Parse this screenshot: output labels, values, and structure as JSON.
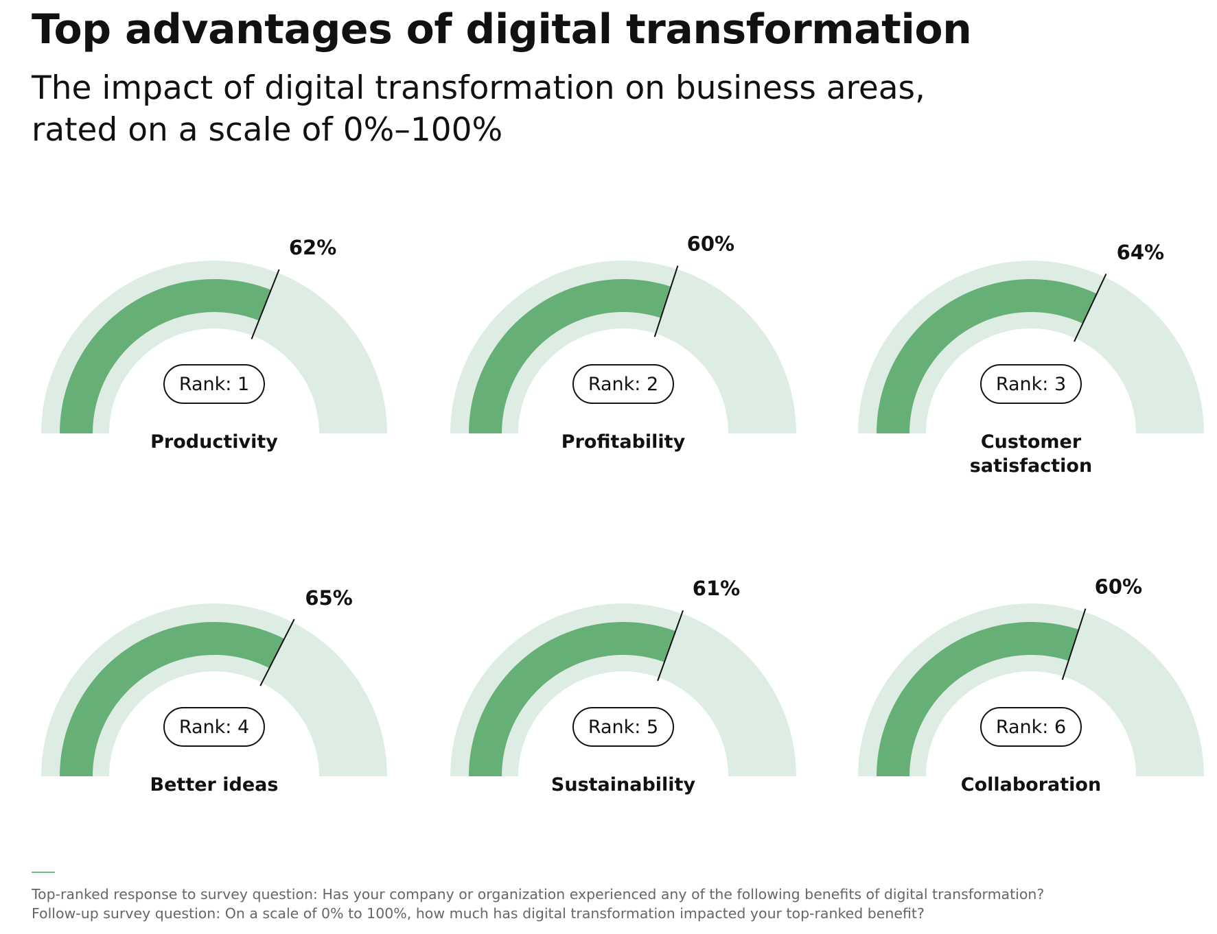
{
  "title": "Top advantages of digital transformation",
  "subtitle": {
    "line1": "The impact of digital transformation on business areas,",
    "line2": "rated on a scale of 0%–100%"
  },
  "colors": {
    "track": "#deede3",
    "fill": "#66b077",
    "needle": "#111111",
    "text": "#111111",
    "footnote": "#666666"
  },
  "chart_data": {
    "type": "gauge",
    "title": "Top advantages of digital transformation",
    "subtitle": "The impact of digital transformation on business areas, rated on a scale of 0%–100%",
    "scale": [
      0,
      100
    ],
    "unit": "%",
    "gauges": [
      {
        "category": "Productivity",
        "category_lines": [
          "Productivity"
        ],
        "rank": 1,
        "rank_label": "Rank: 1",
        "value": 62,
        "value_label": "62%"
      },
      {
        "category": "Profitability",
        "category_lines": [
          "Profitability"
        ],
        "rank": 2,
        "rank_label": "Rank: 2",
        "value": 60,
        "value_label": "60%"
      },
      {
        "category": "Customer satisfaction",
        "category_lines": [
          "Customer",
          "satisfaction"
        ],
        "rank": 3,
        "rank_label": "Rank: 3",
        "value": 64,
        "value_label": "64%"
      },
      {
        "category": "Better ideas",
        "category_lines": [
          "Better ideas"
        ],
        "rank": 4,
        "rank_label": "Rank: 4",
        "value": 65,
        "value_label": "65%"
      },
      {
        "category": "Sustainability",
        "category_lines": [
          "Sustainability"
        ],
        "rank": 5,
        "rank_label": "Rank: 5",
        "value": 61,
        "value_label": "61%"
      },
      {
        "category": "Collaboration",
        "category_lines": [
          "Collaboration"
        ],
        "rank": 6,
        "rank_label": "Rank: 6",
        "value": 60,
        "value_label": "60%"
      }
    ]
  },
  "footnote": {
    "line1": "Top-ranked response to survey question: Has your company or organization experienced any of the following benefits of digital transformation?",
    "line2": "Follow-up survey question: On a scale of 0% to 100%, how much has digital transformation impacted your top-ranked benefit?"
  }
}
